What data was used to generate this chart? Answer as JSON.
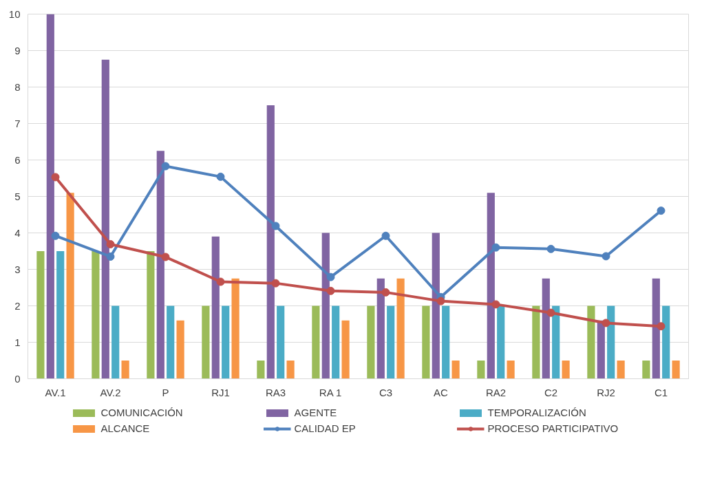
{
  "chart_data": {
    "type": "bar",
    "categories": [
      "AV.1",
      "AV.2",
      "P",
      "RJ1",
      "RA3",
      "RA 1",
      "C3",
      "AC",
      "RA2",
      "C2",
      "RJ2",
      "C1"
    ],
    "series": [
      {
        "name": "COMUNICACIÓN",
        "color": "#9bbb59",
        "values": [
          3.5,
          3.5,
          3.5,
          2,
          0.5,
          2,
          2,
          2,
          0.5,
          2,
          2,
          0.5
        ]
      },
      {
        "name": "AGENTE",
        "color": "#8064a2",
        "values": [
          10,
          8.75,
          6.25,
          3.9,
          7.5,
          4,
          2.75,
          4,
          5.1,
          2.75,
          1.6,
          2.75
        ]
      },
      {
        "name": "TEMPORALIZACIÓN",
        "color": "#4bacc6",
        "values": [
          3.5,
          2,
          2,
          2,
          2,
          2,
          2,
          2,
          2,
          2,
          2,
          2
        ]
      },
      {
        "name": "ALCANCE",
        "color": "#f79646",
        "values": [
          5.1,
          0.5,
          1.6,
          2.75,
          0.5,
          1.6,
          2.75,
          0.5,
          0.5,
          0.5,
          0.5,
          0.5
        ]
      },
      {
        "name": "CALIDAD EP",
        "type": "line",
        "color": "#4f81bd",
        "values": [
          3.92,
          3.35,
          5.83,
          5.54,
          4.19,
          2.79,
          3.92,
          2.24,
          3.6,
          3.56,
          3.36,
          4.61
        ]
      },
      {
        "name": "PROCESO PARTICIPATIVO",
        "type": "line",
        "color": "#c0504d",
        "values": [
          5.53,
          3.69,
          3.34,
          2.66,
          2.62,
          2.41,
          2.37,
          2.13,
          2.04,
          1.81,
          1.53,
          1.44
        ]
      }
    ],
    "ylim": [
      0,
      10
    ],
    "yticks": [
      0,
      1,
      2,
      3,
      4,
      5,
      6,
      7,
      8,
      9,
      10
    ],
    "grid": "y",
    "legend": "bottom",
    "marker": "circle",
    "line_style": "solid"
  }
}
